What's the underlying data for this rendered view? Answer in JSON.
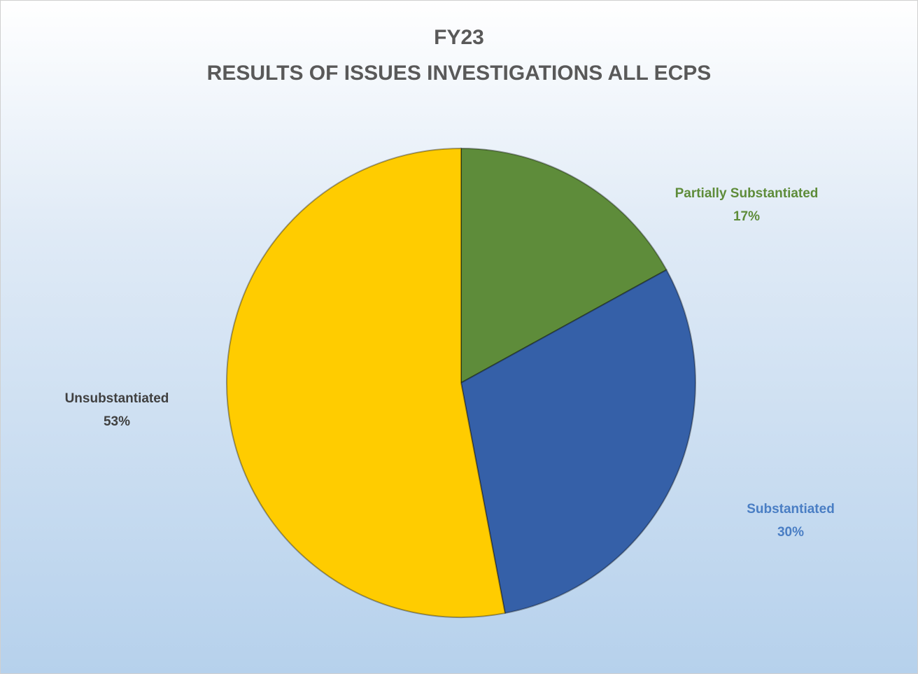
{
  "chart_data": {
    "type": "pie",
    "title": [
      "FY23",
      "RESULTS OF ISSUES INVESTIGATIONS ALL ECPS"
    ],
    "categories": [
      "Partially Substantiated",
      "Substantiated",
      "Unsubstantiated"
    ],
    "values": [
      17,
      30,
      53
    ],
    "value_labels": [
      "17%",
      "30%",
      "53%"
    ],
    "colors": [
      "#5e8c3a",
      "#3560a8",
      "#ffcc00"
    ]
  }
}
